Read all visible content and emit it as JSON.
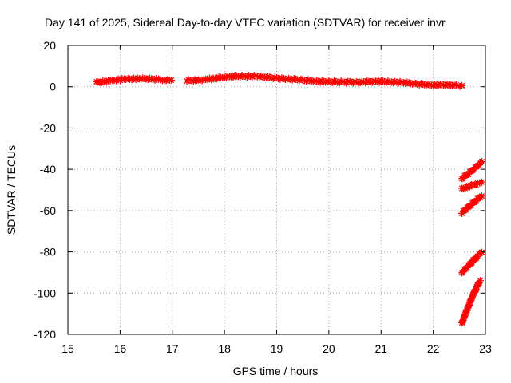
{
  "chart_data": {
    "type": "scatter",
    "title": "Day 141 of 2025, Sidereal Day-to-day VTEC variation (SDTVAR) for receiver invr",
    "xlabel": "GPS time / hours",
    "ylabel": "SDTVAR / TECUs",
    "xlim": [
      15,
      23
    ],
    "ylim": [
      -120,
      20
    ],
    "x_ticks": [
      "15",
      "16",
      "17",
      "18",
      "19",
      "20",
      "21",
      "22",
      "23"
    ],
    "y_ticks": [
      "20",
      "0",
      "-20",
      "-40",
      "-60",
      "-80",
      "-100",
      "-120"
    ],
    "grid": true,
    "marker": "asterisk",
    "color": "#ff0000",
    "series": [
      {
        "segments": [
          [
            [
              15.55,
              2.0
            ],
            [
              15.7,
              2.6
            ],
            [
              15.85,
              3.0
            ],
            [
              16.0,
              3.4
            ],
            [
              16.15,
              3.8
            ],
            [
              16.3,
              3.9
            ],
            [
              16.5,
              3.8
            ],
            [
              16.7,
              3.6
            ],
            [
              16.85,
              3.4
            ],
            [
              16.98,
              3.2
            ]
          ],
          [
            [
              17.28,
              3.0
            ],
            [
              17.5,
              3.2
            ],
            [
              17.75,
              3.8
            ],
            [
              18.0,
              4.6
            ],
            [
              18.2,
              5.1
            ],
            [
              18.4,
              5.2
            ],
            [
              18.6,
              5.0
            ],
            [
              18.8,
              4.6
            ],
            [
              19.0,
              4.2
            ],
            [
              19.2,
              3.8
            ],
            [
              19.4,
              3.4
            ],
            [
              19.6,
              3.0
            ],
            [
              19.8,
              2.7
            ],
            [
              20.0,
              2.4
            ],
            [
              20.2,
              2.3
            ],
            [
              20.4,
              2.3
            ],
            [
              20.6,
              2.3
            ],
            [
              20.8,
              2.4
            ],
            [
              21.0,
              2.6
            ],
            [
              21.2,
              2.4
            ],
            [
              21.4,
              2.0
            ],
            [
              21.6,
              1.6
            ],
            [
              21.8,
              1.2
            ],
            [
              22.0,
              0.9
            ],
            [
              22.2,
              0.8
            ],
            [
              22.4,
              0.8
            ],
            [
              22.55,
              0.5
            ]
          ],
          [
            [
              22.55,
              -44.5
            ],
            [
              22.7,
              -41.5
            ],
            [
              22.85,
              -38.2
            ],
            [
              22.93,
              -36.3
            ]
          ],
          [
            [
              22.55,
              -49.5
            ],
            [
              22.7,
              -48.2
            ],
            [
              22.85,
              -46.8
            ],
            [
              22.93,
              -46.2
            ]
          ],
          [
            [
              22.55,
              -61.0
            ],
            [
              22.7,
              -57.8
            ],
            [
              22.85,
              -54.5
            ],
            [
              22.93,
              -53.0
            ]
          ],
          [
            [
              22.55,
              -90.0
            ],
            [
              22.7,
              -86.2
            ],
            [
              22.85,
              -82.0
            ],
            [
              22.93,
              -80.2
            ]
          ],
          [
            [
              22.55,
              -114.5
            ],
            [
              22.65,
              -108.0
            ],
            [
              22.75,
              -101.5
            ],
            [
              22.85,
              -96.5
            ],
            [
              22.9,
              -94.0
            ]
          ]
        ]
      }
    ]
  }
}
